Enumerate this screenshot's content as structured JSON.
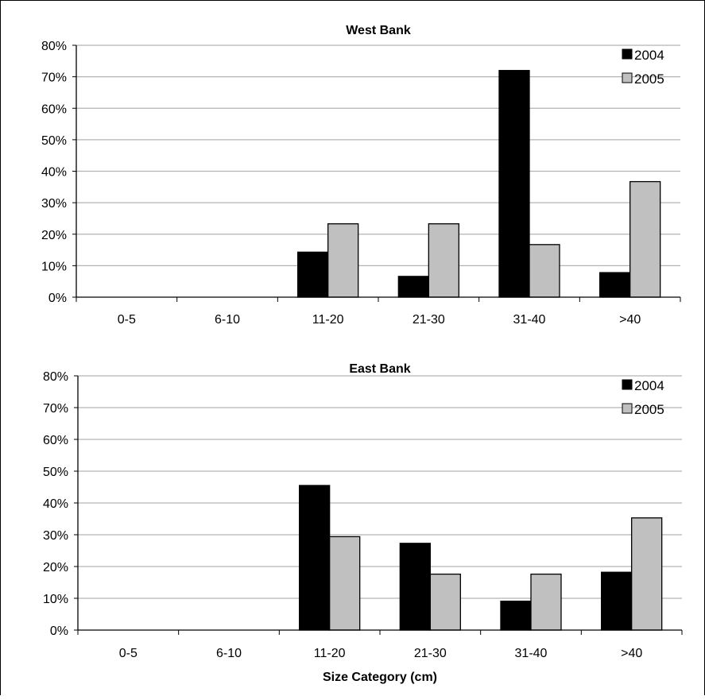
{
  "chart_data": [
    {
      "type": "bar",
      "title": "West Bank",
      "categories": [
        "0-5",
        "6-10",
        "11-20",
        "21-30",
        "31-40",
        ">40"
      ],
      "series": [
        {
          "name": "2004",
          "values": [
            0,
            0,
            14.3,
            6.6,
            72,
            7.8
          ]
        },
        {
          "name": "2005",
          "values": [
            0,
            0,
            23.3,
            23.3,
            16.7,
            36.7
          ]
        }
      ],
      "ylim": [
        0,
        80
      ],
      "yticks": [
        "0%",
        "10%",
        "20%",
        "30%",
        "40%",
        "50%",
        "60%",
        "70%",
        "80%"
      ],
      "grid": true,
      "legend": "top-right",
      "xlabel": "",
      "ylabel": ""
    },
    {
      "type": "bar",
      "title": "East Bank",
      "categories": [
        "0-5",
        "6-10",
        "11-20",
        "21-30",
        "31-40",
        ">40"
      ],
      "series": [
        {
          "name": "2004",
          "values": [
            0,
            0,
            45.5,
            27.3,
            9.1,
            18.2
          ]
        },
        {
          "name": "2005",
          "values": [
            0,
            0,
            29.4,
            17.6,
            17.6,
            35.3
          ]
        }
      ],
      "ylim": [
        0,
        80
      ],
      "yticks": [
        "0%",
        "10%",
        "20%",
        "30%",
        "40%",
        "50%",
        "60%",
        "70%",
        "80%"
      ],
      "grid": true,
      "legend": "top-right",
      "xlabel": "Size Category (cm)",
      "ylabel": ""
    }
  ],
  "colors": {
    "2004": "#000000",
    "2005": "#c0c0c0",
    "grid": "#b3b3b3",
    "axis": "#000000"
  }
}
